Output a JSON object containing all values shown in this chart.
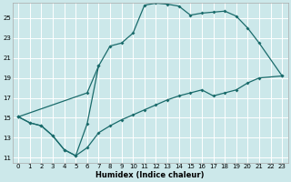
{
  "xlabel": "Humidex (Indice chaleur)",
  "bg_color": "#cce8ea",
  "line_color": "#1a6b6b",
  "grid_color": "#ffffff",
  "xlim": [
    -0.5,
    23.5
  ],
  "ylim": [
    10.5,
    26.5
  ],
  "yticks": [
    11,
    13,
    15,
    17,
    19,
    21,
    23,
    25
  ],
  "xticks": [
    0,
    1,
    2,
    3,
    4,
    5,
    6,
    7,
    8,
    9,
    10,
    11,
    12,
    13,
    14,
    15,
    16,
    17,
    18,
    19,
    20,
    21,
    22,
    23
  ],
  "line_zigzag": {
    "x": [
      0,
      1,
      2,
      3,
      4,
      5,
      6,
      7
    ],
    "y": [
      15.1,
      14.5,
      14.2,
      13.2,
      11.8,
      11.2,
      14.4,
      20.2
    ]
  },
  "line_top": {
    "x": [
      0,
      6,
      7,
      8,
      9,
      10,
      11,
      12,
      13,
      14,
      15,
      16,
      17,
      18,
      19,
      20,
      21,
      23
    ],
    "y": [
      15.1,
      17.5,
      20.2,
      22.2,
      22.5,
      23.5,
      26.3,
      26.5,
      26.4,
      26.2,
      25.3,
      25.5,
      25.6,
      25.7,
      25.2,
      24.0,
      22.5,
      19.2
    ]
  },
  "line_bottom": {
    "x": [
      0,
      1,
      2,
      3,
      4,
      5,
      6,
      7,
      8,
      9,
      10,
      11,
      12,
      13,
      14,
      15,
      16,
      17,
      18,
      19,
      20,
      21,
      23
    ],
    "y": [
      15.1,
      14.5,
      14.2,
      13.2,
      11.8,
      11.2,
      12.0,
      13.5,
      14.2,
      14.8,
      15.3,
      15.8,
      16.3,
      16.8,
      17.2,
      17.5,
      17.8,
      17.2,
      17.5,
      17.8,
      18.5,
      19.0,
      19.2
    ]
  }
}
